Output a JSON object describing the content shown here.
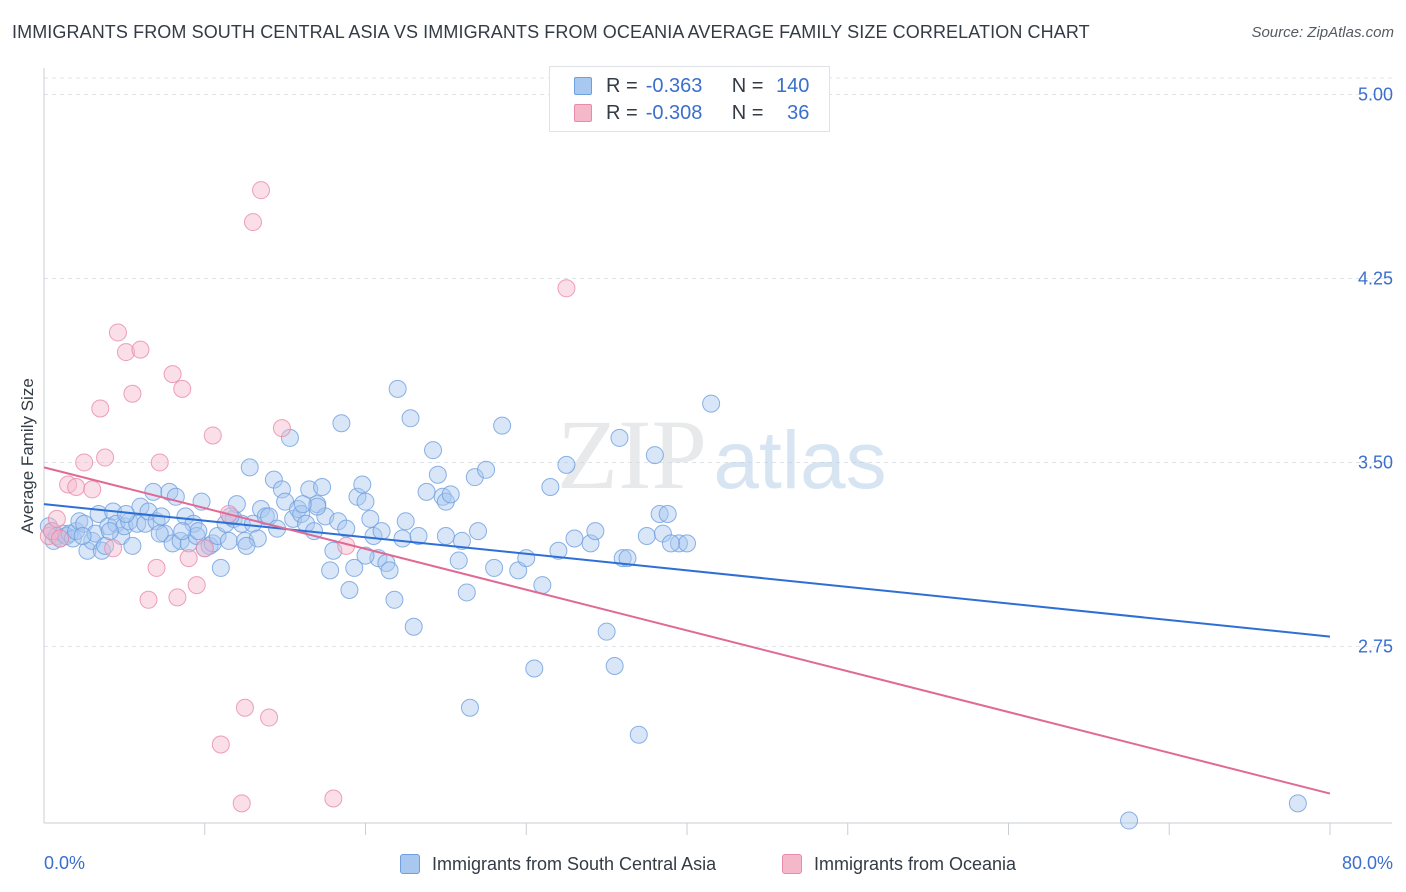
{
  "title": "IMMIGRANTS FROM SOUTH CENTRAL ASIA VS IMMIGRANTS FROM OCEANIA AVERAGE FAMILY SIZE CORRELATION CHART",
  "source": "Source: ZipAtlas.com",
  "watermark": {
    "zip": "ZIP",
    "atlas": "atlas"
  },
  "legend": {
    "rows": [
      {
        "r_label": "R =",
        "r_value": "-0.363",
        "n_label": "N =",
        "n_value": "140",
        "color": "#a8c8f0"
      },
      {
        "r_label": "R =",
        "r_value": "-0.308",
        "n_label": "N =",
        "n_value": "36",
        "color": "#f5b8cb"
      }
    ]
  },
  "chart_data": {
    "type": "scatter",
    "title": "IMMIGRANTS FROM SOUTH CENTRAL ASIA VS IMMIGRANTS FROM OCEANIA AVERAGE FAMILY SIZE CORRELATION CHART",
    "xlabel": "",
    "ylabel": "Average Family Size",
    "xlim": [
      0,
      80
    ],
    "ylim": [
      2.03,
      5.1
    ],
    "x_tick_labels": [
      "0.0%",
      "80.0%"
    ],
    "y_ticks": [
      2.75,
      3.5,
      4.25,
      5.0
    ],
    "y_tick_labels": [
      "2.75",
      "3.50",
      "4.25",
      "5.00"
    ],
    "grid": true,
    "legend_position": "top-center",
    "series": [
      {
        "name": "Immigrants from South Central Asia",
        "color": "#a8c8f0",
        "edge": "#6e9fdf",
        "line_color": "#2e6fd6",
        "trend": [
          [
            0,
            3.33
          ],
          [
            80,
            2.79
          ]
        ],
        "points": [
          [
            0.3,
            3.24
          ],
          [
            0.5,
            3.22
          ],
          [
            0.6,
            3.18
          ],
          [
            0.8,
            3.2
          ],
          [
            1.0,
            3.19
          ],
          [
            1.2,
            3.21
          ],
          [
            1.4,
            3.2
          ],
          [
            1.6,
            3.21
          ],
          [
            1.8,
            3.19
          ],
          [
            2.0,
            3.22
          ],
          [
            2.2,
            3.26
          ],
          [
            2.5,
            3.25
          ],
          [
            2.7,
            3.14
          ],
          [
            3.0,
            3.18
          ],
          [
            3.2,
            3.21
          ],
          [
            3.4,
            3.29
          ],
          [
            3.6,
            3.14
          ],
          [
            3.8,
            3.16
          ],
          [
            4.0,
            3.24
          ],
          [
            4.3,
            3.3
          ],
          [
            4.5,
            3.25
          ],
          [
            4.8,
            3.2
          ],
          [
            5.0,
            3.24
          ],
          [
            5.3,
            3.26
          ],
          [
            5.5,
            3.16
          ],
          [
            5.8,
            3.25
          ],
          [
            6.0,
            3.32
          ],
          [
            6.3,
            3.25
          ],
          [
            6.5,
            3.3
          ],
          [
            6.8,
            3.38
          ],
          [
            7.0,
            3.26
          ],
          [
            7.3,
            3.28
          ],
          [
            7.5,
            3.21
          ],
          [
            7.8,
            3.38
          ],
          [
            8.0,
            3.17
          ],
          [
            8.2,
            3.36
          ],
          [
            8.5,
            3.18
          ],
          [
            8.8,
            3.28
          ],
          [
            9.0,
            3.17
          ],
          [
            9.3,
            3.25
          ],
          [
            9.5,
            3.2
          ],
          [
            9.8,
            3.34
          ],
          [
            10.0,
            3.15
          ],
          [
            10.3,
            3.16
          ],
          [
            10.5,
            3.17
          ],
          [
            10.8,
            3.2
          ],
          [
            11.0,
            3.07
          ],
          [
            11.3,
            3.25
          ],
          [
            11.5,
            3.18
          ],
          [
            11.8,
            3.27
          ],
          [
            12.0,
            3.33
          ],
          [
            12.3,
            3.25
          ],
          [
            12.5,
            3.18
          ],
          [
            12.8,
            3.48
          ],
          [
            13.0,
            3.25
          ],
          [
            13.3,
            3.19
          ],
          [
            13.5,
            3.31
          ],
          [
            13.8,
            3.28
          ],
          [
            14.0,
            3.28
          ],
          [
            14.3,
            3.43
          ],
          [
            14.5,
            3.23
          ],
          [
            14.8,
            3.39
          ],
          [
            15.0,
            3.34
          ],
          [
            15.3,
            3.6
          ],
          [
            15.5,
            3.27
          ],
          [
            15.8,
            3.31
          ],
          [
            16.0,
            3.29
          ],
          [
            16.3,
            3.25
          ],
          [
            16.5,
            3.39
          ],
          [
            16.8,
            3.22
          ],
          [
            17.0,
            3.33
          ],
          [
            17.3,
            3.4
          ],
          [
            17.5,
            3.28
          ],
          [
            17.8,
            3.06
          ],
          [
            18.0,
            3.14
          ],
          [
            18.3,
            3.26
          ],
          [
            18.5,
            3.66
          ],
          [
            18.8,
            3.23
          ],
          [
            19.0,
            2.98
          ],
          [
            19.3,
            3.07
          ],
          [
            19.5,
            3.36
          ],
          [
            19.8,
            3.41
          ],
          [
            20.0,
            3.34
          ],
          [
            20.3,
            3.27
          ],
          [
            20.5,
            3.2
          ],
          [
            20.8,
            3.11
          ],
          [
            21.0,
            3.22
          ],
          [
            21.3,
            3.09
          ],
          [
            21.5,
            3.06
          ],
          [
            21.8,
            2.94
          ],
          [
            22.0,
            3.8
          ],
          [
            22.3,
            3.19
          ],
          [
            22.5,
            3.26
          ],
          [
            22.8,
            3.68
          ],
          [
            23.0,
            2.83
          ],
          [
            23.3,
            3.2
          ],
          [
            23.8,
            3.38
          ],
          [
            24.2,
            3.55
          ],
          [
            24.5,
            3.45
          ],
          [
            24.8,
            3.36
          ],
          [
            25.0,
            3.34
          ],
          [
            25.3,
            3.37
          ],
          [
            25.8,
            3.1
          ],
          [
            26.0,
            3.18
          ],
          [
            26.3,
            2.97
          ],
          [
            26.5,
            2.5
          ],
          [
            26.8,
            3.44
          ],
          [
            27.5,
            3.47
          ],
          [
            28.0,
            3.07
          ],
          [
            28.5,
            3.65
          ],
          [
            29.5,
            3.06
          ],
          [
            30.5,
            2.66
          ],
          [
            31.0,
            3.0
          ],
          [
            31.5,
            3.4
          ],
          [
            32.0,
            3.14
          ],
          [
            32.5,
            3.49
          ],
          [
            33.0,
            3.19
          ],
          [
            34.0,
            3.17
          ],
          [
            34.3,
            3.22
          ],
          [
            35.0,
            2.81
          ],
          [
            35.8,
            3.6
          ],
          [
            36.0,
            3.11
          ],
          [
            36.3,
            3.11
          ],
          [
            37.0,
            2.39
          ],
          [
            37.5,
            3.2
          ],
          [
            38.0,
            3.53
          ],
          [
            38.3,
            3.29
          ],
          [
            38.5,
            3.21
          ],
          [
            38.8,
            3.29
          ],
          [
            39.5,
            3.17
          ],
          [
            40.0,
            3.17
          ],
          [
            39.0,
            3.17
          ],
          [
            17.0,
            3.32
          ],
          [
            20.0,
            3.12
          ],
          [
            25.0,
            3.2
          ],
          [
            27.0,
            3.22
          ],
          [
            30.0,
            3.11
          ],
          [
            35.5,
            2.67
          ],
          [
            41.5,
            3.74
          ],
          [
            67.5,
            2.04
          ],
          [
            78.0,
            2.11
          ],
          [
            12.6,
            3.16
          ],
          [
            9.6,
            3.22
          ],
          [
            11.6,
            3.28
          ],
          [
            8.6,
            3.22
          ],
          [
            7.2,
            3.21
          ],
          [
            2.4,
            3.2
          ],
          [
            4.1,
            3.22
          ],
          [
            5.1,
            3.29
          ],
          [
            16.1,
            3.33
          ]
        ]
      },
      {
        "name": "Immigrants from Oceania",
        "color": "#f5b8cb",
        "edge": "#ea8aa9",
        "line_color": "#e06a94",
        "trend": [
          [
            0,
            3.48
          ],
          [
            80,
            2.15
          ]
        ],
        "points": [
          [
            0.3,
            3.2
          ],
          [
            0.5,
            3.22
          ],
          [
            0.8,
            3.27
          ],
          [
            1.0,
            3.19
          ],
          [
            1.5,
            3.41
          ],
          [
            2.0,
            3.4
          ],
          [
            2.5,
            3.5
          ],
          [
            3.0,
            3.39
          ],
          [
            3.5,
            3.72
          ],
          [
            3.8,
            3.52
          ],
          [
            4.3,
            3.15
          ],
          [
            4.6,
            4.03
          ],
          [
            5.1,
            3.95
          ],
          [
            5.5,
            3.78
          ],
          [
            6.0,
            3.96
          ],
          [
            6.5,
            2.94
          ],
          [
            7.0,
            3.07
          ],
          [
            7.2,
            3.5
          ],
          [
            8.0,
            3.86
          ],
          [
            8.3,
            2.95
          ],
          [
            8.6,
            3.8
          ],
          [
            9.0,
            3.11
          ],
          [
            9.5,
            3.0
          ],
          [
            10.0,
            3.15
          ],
          [
            10.5,
            3.61
          ],
          [
            11.0,
            2.35
          ],
          [
            11.5,
            3.29
          ],
          [
            12.3,
            2.11
          ],
          [
            12.5,
            2.5
          ],
          [
            13.0,
            4.48
          ],
          [
            13.5,
            4.61
          ],
          [
            14.0,
            2.46
          ],
          [
            14.8,
            3.64
          ],
          [
            18.0,
            2.13
          ],
          [
            18.8,
            3.16
          ],
          [
            32.5,
            4.21
          ]
        ]
      }
    ]
  }
}
